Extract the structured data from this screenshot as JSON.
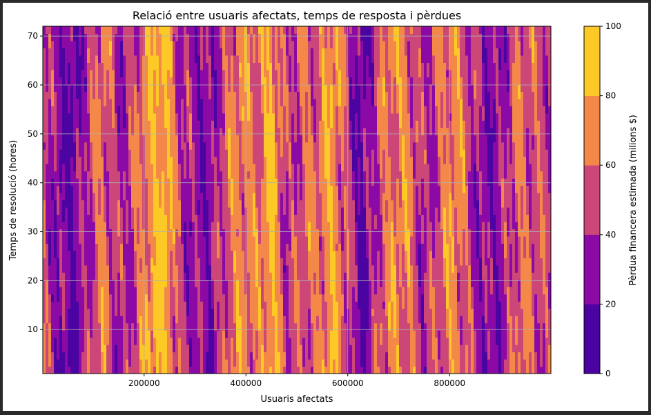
{
  "chart_data": {
    "type": "heatmap",
    "subtype": "filled-contour",
    "title": "Relació entre usuaris afectats, temps de resposta i pèrdues",
    "xlabel": "Usuaris afectats",
    "ylabel": "Temps de resolució (hores)",
    "colorbar_label": "Pèrdua financera estimada (milions $)",
    "xlim": [
      1000,
      999000
    ],
    "ylim": [
      1,
      72
    ],
    "x_ticks": [
      200000,
      400000,
      600000,
      800000
    ],
    "x_tick_labels": [
      "200000",
      "400000",
      "600000",
      "800000"
    ],
    "y_ticks": [
      10,
      20,
      30,
      40,
      50,
      60,
      70
    ],
    "y_tick_labels": [
      "10",
      "20",
      "30",
      "40",
      "50",
      "60",
      "70"
    ],
    "grid": true,
    "colorbar_levels": [
      0,
      20,
      40,
      60,
      80,
      100
    ],
    "colorbar_tick_labels": [
      "0",
      "20",
      "40",
      "60",
      "80",
      "100"
    ],
    "colormap": "plasma",
    "level_colors": [
      "#4b03a1",
      "#8b0aa5",
      "#cc4778",
      "#f48849",
      "#fdc926"
    ],
    "x_sample": [
      1000,
      30000,
      60000,
      90000,
      120000,
      150000,
      180000,
      210000,
      240000,
      270000,
      300000,
      330000,
      360000,
      390000,
      420000,
      450000,
      480000,
      510000,
      540000,
      570000,
      600000,
      630000,
      660000,
      690000,
      720000,
      750000,
      780000,
      810000,
      840000,
      870000,
      900000,
      930000,
      960000,
      999000
    ],
    "y_sample": [
      1,
      10,
      20,
      30,
      40,
      50,
      60,
      72
    ],
    "z_profile_by_x": [
      55,
      25,
      15,
      45,
      65,
      35,
      50,
      75,
      90,
      45,
      30,
      25,
      55,
      70,
      60,
      85,
      40,
      55,
      60,
      80,
      45,
      15,
      50,
      70,
      65,
      35,
      55,
      75,
      45,
      25,
      30,
      60,
      55,
      45
    ]
  }
}
